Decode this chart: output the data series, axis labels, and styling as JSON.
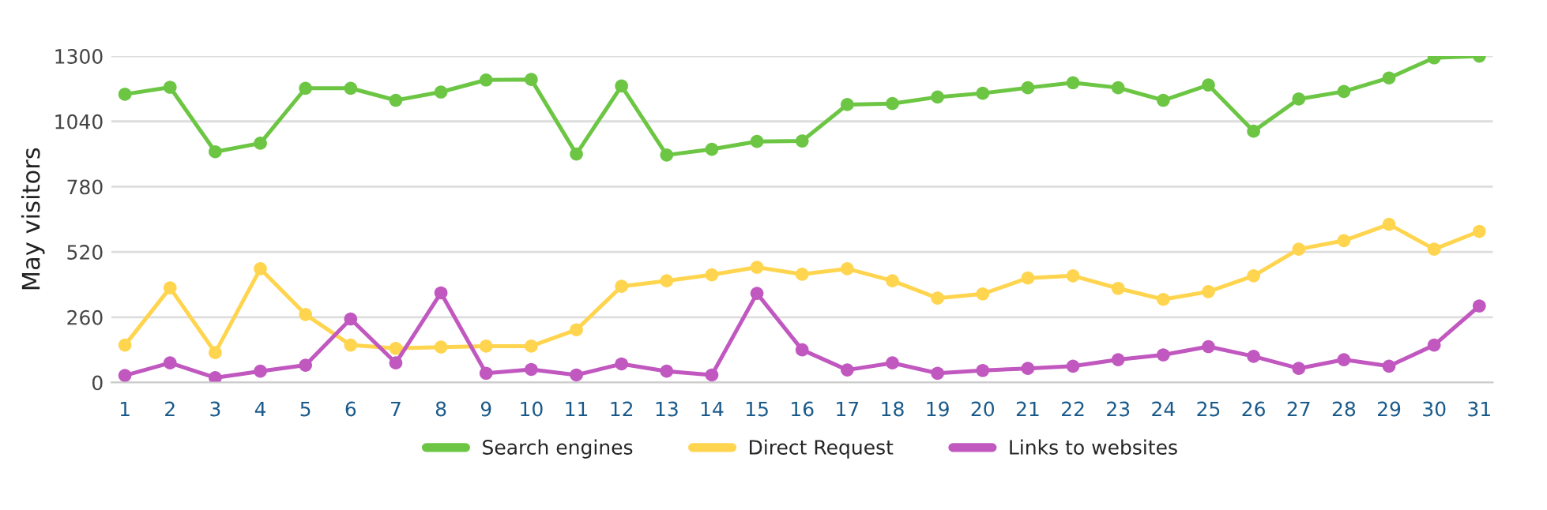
{
  "chart_data": {
    "type": "line",
    "ylabel": "May visitors",
    "categories": [
      "1",
      "2",
      "3",
      "4",
      "5",
      "6",
      "7",
      "8",
      "9",
      "10",
      "11",
      "12",
      "13",
      "14",
      "15",
      "16",
      "17",
      "18",
      "19",
      "20",
      "21",
      "22",
      "23",
      "24",
      "25",
      "26",
      "27",
      "28",
      "29",
      "30",
      "31"
    ],
    "series": [
      {
        "name": "Search engines",
        "color": "#6cc644",
        "values": [
          1148,
          1176,
          919,
          953,
          1172,
          1172,
          1124,
          1157,
          1205,
          1207,
          910,
          1181,
          906,
          929,
          960,
          962,
          1107,
          1111,
          1137,
          1152,
          1174,
          1194,
          1174,
          1124,
          1185,
          1001,
          1129,
          1159,
          1213,
          1293,
          1300
        ]
      },
      {
        "name": "Direct Request",
        "color": "#ffd54f",
        "values": [
          149,
          377,
          119,
          453,
          271,
          149,
          136,
          141,
          145,
          145,
          210,
          383,
          405,
          429,
          459,
          431,
          453,
          405,
          336,
          353,
          416,
          425,
          375,
          331,
          362,
          425,
          531,
          565,
          630,
          531,
          602
        ]
      },
      {
        "name": "Links to websites",
        "color": "#c158c0",
        "values": [
          28,
          78,
          19,
          45,
          69,
          253,
          78,
          357,
          37,
          52,
          30,
          74,
          45,
          30,
          355,
          130,
          50,
          78,
          37,
          48,
          56,
          65,
          91,
          110,
          143,
          104,
          56,
          91,
          65,
          149,
          305
        ]
      }
    ],
    "ylim": [
      0,
      1300
    ],
    "yticks": [
      0,
      260,
      520,
      780,
      1040,
      1300
    ],
    "grid": "y",
    "legend": "bottom",
    "marker": "circle",
    "line_style": "solid"
  }
}
